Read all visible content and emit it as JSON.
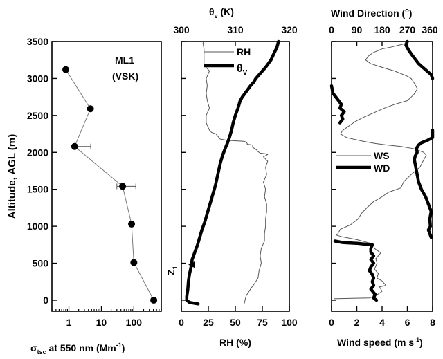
{
  "chart_data": [
    {
      "type": "scatter",
      "panel": "left",
      "annotation_line1": "ML1",
      "annotation_line2": "(VSK)",
      "ylabel": "Altitude, AGL (m)",
      "xlabel_prefix": "σ",
      "xlabel_sub": "tsc",
      "xlabel_main": " at 550 nm (Mm",
      "xlabel_sup": "-1",
      "xlabel_end": ")",
      "x_scale": "log",
      "xlim": [
        0.3,
        700
      ],
      "ylim": [
        -150,
        3500
      ],
      "x_tick_labels": [
        {
          "value": 1,
          "label": "1"
        },
        {
          "value": 10,
          "label": "10"
        },
        {
          "value": 100,
          "label": "100"
        }
      ],
      "y_tick_labels": [
        {
          "value": 0,
          "label": "0"
        },
        {
          "value": 500,
          "label": "500"
        },
        {
          "value": 1000,
          "label": "1000"
        },
        {
          "value": 1500,
          "label": "1500"
        },
        {
          "value": 2000,
          "label": "2000"
        },
        {
          "value": 2500,
          "label": "2500"
        },
        {
          "value": 3000,
          "label": "3000"
        },
        {
          "value": 3500,
          "label": "3500"
        }
      ],
      "points": [
        {
          "x": 0.8,
          "y": 3120
        },
        {
          "x": 4.6,
          "y": 2590,
          "xerr": [
            0,
            0
          ]
        },
        {
          "x": 1.5,
          "y": 2080,
          "xerr": [
            1.5,
            3.2
          ]
        },
        {
          "x": 45,
          "y": 1540,
          "xerr": [
            15,
            70
          ]
        },
        {
          "x": 85,
          "y": 1030
        },
        {
          "x": 100,
          "y": 510
        },
        {
          "x": 410,
          "y": 0
        }
      ]
    },
    {
      "type": "line",
      "panel": "middle",
      "top_axis_label": "θ",
      "top_axis_sub": "v",
      "top_axis_unit": " (K)",
      "xlabel": "RH (%)",
      "xlim": [
        0,
        100
      ],
      "top_xlim": [
        300,
        320
      ],
      "ylim": [
        -150,
        3500
      ],
      "x_tick_labels": [
        {
          "value": 0,
          "label": "0"
        },
        {
          "value": 25,
          "label": "25"
        },
        {
          "value": 50,
          "label": "50"
        },
        {
          "value": 75,
          "label": "75"
        },
        {
          "value": 100,
          "label": "100"
        }
      ],
      "top_tick_labels": [
        {
          "value": 300,
          "label": "300"
        },
        {
          "value": 310,
          "label": "310"
        },
        {
          "value": 320,
          "label": "320"
        }
      ],
      "legend": [
        {
          "label": "RH",
          "sub": ""
        },
        {
          "label": "θ",
          "sub": "V"
        }
      ],
      "marker_label": "Z",
      "marker_sub": "1",
      "marker_y": 480,
      "series": [
        {
          "name": "RH",
          "axis": "bottom",
          "x": [
            58,
            60,
            64,
            68,
            71,
            72,
            74,
            73,
            74,
            77,
            77,
            78,
            78,
            79,
            79,
            77,
            78,
            76,
            79,
            78,
            80,
            76,
            80,
            78,
            73,
            71,
            70,
            68,
            66,
            66,
            61,
            61,
            60,
            58,
            45,
            40,
            36,
            32,
            28,
            26,
            23,
            23,
            26,
            24,
            23,
            24,
            23,
            26,
            23,
            21,
            21,
            21,
            20,
            21
          ],
          "y": [
            -60,
            60,
            150,
            230,
            300,
            400,
            500,
            600,
            700,
            800,
            900,
            1000,
            1100,
            1200,
            1300,
            1400,
            1500,
            1600,
            1700,
            1800,
            1880,
            1940,
            1970,
            1980,
            1990,
            2010,
            2030,
            2050,
            2070,
            2100,
            2110,
            2120,
            2140,
            2150,
            2160,
            2170,
            2180,
            2250,
            2270,
            2300,
            2400,
            2500,
            2600,
            2700,
            2800,
            2900,
            3000,
            3100,
            3150,
            3200,
            3300,
            3400,
            3480,
            3500
          ]
        },
        {
          "name": "θV",
          "axis": "top",
          "x": [
            303.1,
            301.5,
            301.0,
            301.0,
            301.2,
            301.3,
            301.5,
            301.8,
            302.0,
            302.5,
            303.0,
            303.4,
            303.8,
            304.3,
            304.7,
            305.1,
            305.5,
            305.9,
            306.3,
            306.6,
            306.9,
            307.2,
            307.6,
            308.1,
            308.5,
            308.9,
            309.3,
            309.6,
            310.0,
            310.5,
            310.9,
            311.3,
            311.8,
            312.3,
            312.8,
            313.4,
            313.8,
            314.4,
            315.0,
            315.6,
            316.1,
            316.6,
            317.1,
            317.7,
            318.0
          ],
          "y": [
            -50,
            -30,
            0,
            50,
            150,
            250,
            350,
            450,
            550,
            650,
            750,
            850,
            950,
            1050,
            1150,
            1250,
            1350,
            1450,
            1550,
            1650,
            1750,
            1850,
            1950,
            2050,
            2120,
            2200,
            2300,
            2400,
            2500,
            2600,
            2700,
            2750,
            2800,
            2850,
            2900,
            2950,
            3000,
            3050,
            3100,
            3150,
            3200,
            3250,
            3330,
            3420,
            3500
          ]
        }
      ]
    },
    {
      "type": "line",
      "panel": "right",
      "top_axis_label": "Wind Direction (",
      "top_axis_sup": "o",
      "top_axis_end": ")",
      "xlabel_main": "Wind speed (m s",
      "xlabel_sup": "-1",
      "xlabel_end": ")",
      "xlim": [
        0,
        8
      ],
      "top_xlim": [
        0,
        360
      ],
      "ylim": [
        -150,
        3500
      ],
      "x_tick_labels": [
        {
          "value": 0,
          "label": "0"
        },
        {
          "value": 2,
          "label": "2"
        },
        {
          "value": 4,
          "label": "4"
        },
        {
          "value": 6,
          "label": "6"
        },
        {
          "value": 8,
          "label": "8"
        }
      ],
      "top_tick_labels": [
        {
          "value": 0,
          "label": "0"
        },
        {
          "value": 90,
          "label": "90"
        },
        {
          "value": 180,
          "label": "180"
        },
        {
          "value": 270,
          "label": "270"
        },
        {
          "value": 360,
          "label": "360"
        }
      ],
      "legend": [
        {
          "label": "WS"
        },
        {
          "label": "WD"
        }
      ],
      "series": [
        {
          "name": "WS",
          "axis": "bottom",
          "x": [
            0.2,
            3.0,
            3.5,
            4.0,
            3.8,
            4.3,
            4.0,
            3.6,
            3.7,
            3.4,
            3.6,
            3.5,
            3.9,
            3.4,
            3.3,
            2.0,
            0.8,
            0.4,
            0.5,
            0.7,
            1.5,
            2.1,
            2.4,
            2.8,
            3.3,
            4.0,
            4.5,
            5.5,
            5.7,
            6.3,
            7.0,
            7.3,
            7.5,
            7.3,
            6.5,
            5.5,
            4.4,
            3.5,
            2.5,
            1.2,
            0.7,
            0.9,
            1.4,
            1.9,
            2.6,
            3.4,
            4.2,
            5.0,
            6.0,
            6.5,
            6.8,
            6.5,
            6.3,
            6.0,
            5.0,
            4.0,
            3.1,
            2.7,
            2.9,
            3.3,
            4.0,
            4.6,
            5.3,
            5.8,
            5.9
          ],
          "y": [
            20,
            30,
            60,
            120,
            180,
            200,
            260,
            300,
            360,
            420,
            500,
            560,
            640,
            700,
            760,
            820,
            860,
            880,
            900,
            960,
            1020,
            1100,
            1180,
            1250,
            1330,
            1400,
            1460,
            1520,
            1600,
            1700,
            1800,
            1900,
            1960,
            2000,
            2050,
            2080,
            2100,
            2120,
            2150,
            2200,
            2250,
            2300,
            2360,
            2420,
            2480,
            2540,
            2600,
            2650,
            2700,
            2780,
            2860,
            2950,
            3000,
            3030,
            3100,
            3150,
            3200,
            3250,
            3300,
            3350,
            3400,
            3420,
            3450,
            3470,
            3500
          ]
        },
        {
          "name": "WD",
          "axis": "top",
          "x": [
            160,
            150,
            155,
            140,
            150,
            145,
            150,
            145,
            135,
            140,
            150,
            140,
            150,
            140,
            140,
            145,
            115,
            90,
            60,
            40,
            12,
            355,
            350,
            345,
            352,
            350,
            355,
            345,
            335,
            320,
            310,
            305,
            300,
            295,
            298,
            305,
            302,
            310,
            320,
            340,
            360,
            360,
            30,
            40,
            35,
            45,
            30,
            35,
            25,
            5,
            0,
            360,
            355,
            340,
            310,
            290,
            275,
            265,
            270
          ],
          "y": [
            0,
            30,
            80,
            150,
            200,
            250,
            300,
            350,
            400,
            450,
            500,
            550,
            600,
            650,
            700,
            750,
            760,
            770,
            775,
            780,
            800,
            850,
            900,
            950,
            1000,
            1100,
            1200,
            1300,
            1400,
            1500,
            1600,
            1700,
            1800,
            1900,
            1950,
            2000,
            2050,
            2100,
            2130,
            2160,
            2200,
            2300,
            2400,
            2450,
            2500,
            2550,
            2600,
            2650,
            2700,
            2800,
            2900,
            3000,
            3050,
            3100,
            3200,
            3300,
            3380,
            3450,
            3500
          ]
        }
      ]
    }
  ]
}
